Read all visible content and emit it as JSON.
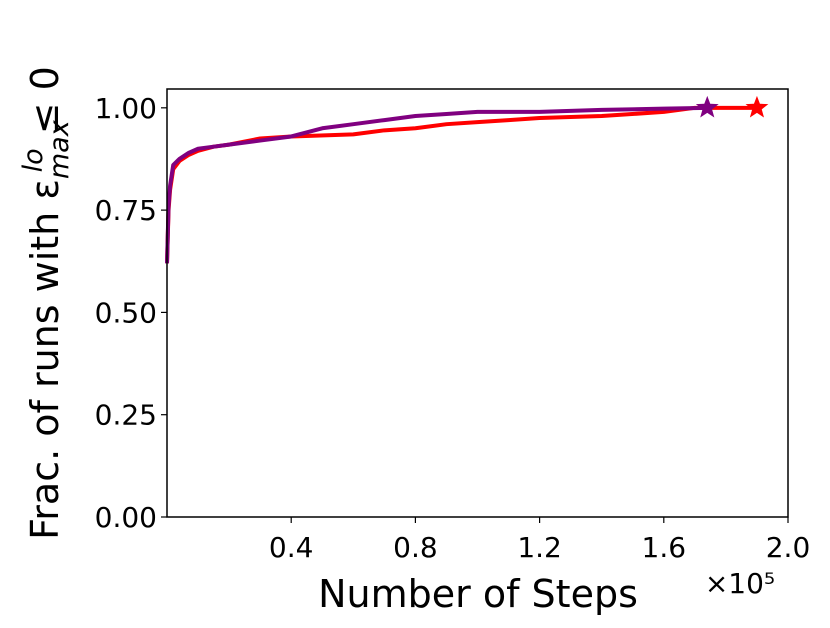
{
  "chart_data": {
    "type": "line",
    "xlabel": "Number of Steps",
    "x_offset_text": "×10⁵",
    "ylabel_parts": {
      "text": "Frac. of runs with ε",
      "sub": "max",
      "sup": "lo",
      "tail": "≤ 0"
    },
    "xlim": [
      0,
      2.0
    ],
    "ylim": [
      0,
      1.046
    ],
    "xticks": [
      0.4,
      0.8,
      1.2,
      1.6,
      {
        "value": 2,
        "label": "2.0"
      }
    ],
    "yticks": [
      {
        "value": 0,
        "label": "0.00"
      },
      {
        "value": 0.25,
        "label": "0.25"
      },
      {
        "value": 0.5,
        "label": "0.50"
      },
      {
        "value": 0.75,
        "label": "0.75"
      },
      {
        "value": 1,
        "label": "1.00"
      }
    ],
    "last_marker": "star",
    "series": [
      {
        "color": "#ff0000",
        "x": [
          0,
          0.005,
          0.01,
          0.02,
          0.04,
          0.07,
          0.1,
          0.15,
          0.2,
          0.3,
          0.4,
          0.6,
          0.7,
          0.8,
          0.9,
          1.0,
          1.1,
          1.2,
          1.4,
          1.6,
          1.7,
          1.9
        ],
        "values": [
          0.62,
          0.75,
          0.8,
          0.85,
          0.87,
          0.885,
          0.895,
          0.905,
          0.91,
          0.925,
          0.93,
          0.935,
          0.945,
          0.95,
          0.96,
          0.965,
          0.97,
          0.975,
          0.98,
          0.99,
          1.0,
          1.0
        ]
      },
      {
        "color": "#800080",
        "x": [
          0,
          0.005,
          0.01,
          0.02,
          0.04,
          0.07,
          0.1,
          0.15,
          0.2,
          0.3,
          0.4,
          0.5,
          0.6,
          0.7,
          0.8,
          0.9,
          1.0,
          1.2,
          1.4,
          1.6,
          1.74
        ],
        "values": [
          0.62,
          0.76,
          0.81,
          0.86,
          0.875,
          0.89,
          0.9,
          0.905,
          0.91,
          0.92,
          0.93,
          0.95,
          0.96,
          0.97,
          0.98,
          0.985,
          0.99,
          0.99,
          0.995,
          0.998,
          1.0
        ]
      }
    ]
  }
}
